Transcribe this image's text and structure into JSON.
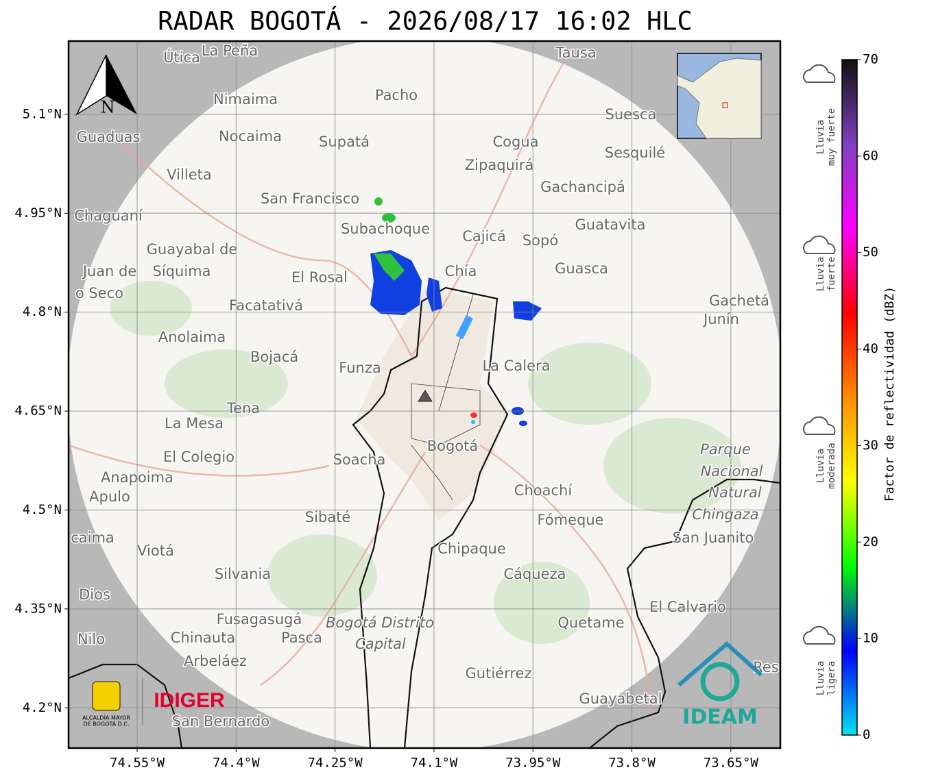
{
  "title": "RADAR BOGOTÁ - 2026/08/17 16:02 HLC",
  "map": {
    "xlim": [
      -74.654,
      -73.575
    ],
    "ylim": [
      4.139,
      5.211
    ],
    "xticks": [
      {
        "value": -74.55,
        "label": "74.55°W"
      },
      {
        "value": -74.4,
        "label": "74.4°W"
      },
      {
        "value": -74.25,
        "label": "74.25°W"
      },
      {
        "value": -74.1,
        "label": "74.1°W"
      },
      {
        "value": -73.95,
        "label": "73.95°W"
      },
      {
        "value": -73.8,
        "label": "73.8°W"
      },
      {
        "value": -73.65,
        "label": "73.65°W"
      }
    ],
    "yticks": [
      {
        "value": 5.1,
        "label": "5.1°N"
      },
      {
        "value": 4.95,
        "label": "4.95°N"
      },
      {
        "value": 4.8,
        "label": "4.8°N"
      },
      {
        "value": 4.65,
        "label": "4.65°N"
      },
      {
        "value": 4.5,
        "label": "4.5°N"
      },
      {
        "value": 4.35,
        "label": "4.35°N"
      },
      {
        "value": 4.2,
        "label": "4.2°N"
      }
    ],
    "north": "N",
    "places": [
      "Útica",
      "La Peña",
      "Tausa",
      "Pacho",
      "Nimaima",
      "Guaduas",
      "Nocaima",
      "Supatá",
      "Cogua",
      "Suesca",
      "Sesquilé",
      "Zipaquirá",
      "Villeta",
      "Gachancipá",
      "San Francisco",
      "Chaguaní",
      "Guatavita",
      "Subachoque",
      "Cajicá",
      "Sopó",
      "Guayabal de",
      "Síquima",
      "Juan de",
      "o Seco",
      "El Rosal",
      "Chía",
      "Guasca",
      "Facatativá",
      "Gachetá",
      "Junín",
      "Anolaima",
      "Bojacá",
      "Funza",
      "La Calera",
      "Tena",
      "La Mesa",
      "Bogotá",
      "Parque",
      "Nacional",
      "Natural",
      "Chingaza",
      "El Colegio",
      "Soacha",
      "Anapoima",
      "Apulo",
      "Choachí",
      "Sibaté",
      "Fómeque",
      "San Juanito",
      "caima",
      "Viotá",
      "Chipaque",
      "Silvania",
      "Cáqueza",
      "Dios",
      "El Calvario",
      "Fusagasugá",
      "Bogotá Distrito",
      "Capital",
      "Quetame",
      "Nilo",
      "Chinauta",
      "Pasca",
      "Arbeláez",
      "Res",
      "Gutiérrez",
      "Guayabetal",
      "San Bernardo"
    ]
  },
  "logos": {
    "alcaldia": [
      "ALCALDÍA MAYOR",
      "DE BOGOTÁ D.C."
    ],
    "idiger": "IDIGER",
    "ideam": "IDEAM"
  },
  "colorbar": {
    "label": "Factor de reflectividad (dBZ)",
    "lim": [
      0,
      70
    ],
    "ticks": [
      0,
      10,
      20,
      30,
      40,
      50,
      60,
      70
    ],
    "colors": [
      "#00e5ee",
      "#0000ff",
      "#00ff00",
      "#ffff00",
      "#ff8c00",
      "#ff0000",
      "#ff00ff",
      "#8040c0",
      "#111111"
    ]
  },
  "rain_levels": [
    [
      "Lluvia",
      "muy fuerte"
    ],
    [
      "Lluvia",
      "fuerte"
    ],
    [
      "Lluvia",
      "moderada"
    ],
    [
      "Lluvia",
      "ligera"
    ]
  ]
}
